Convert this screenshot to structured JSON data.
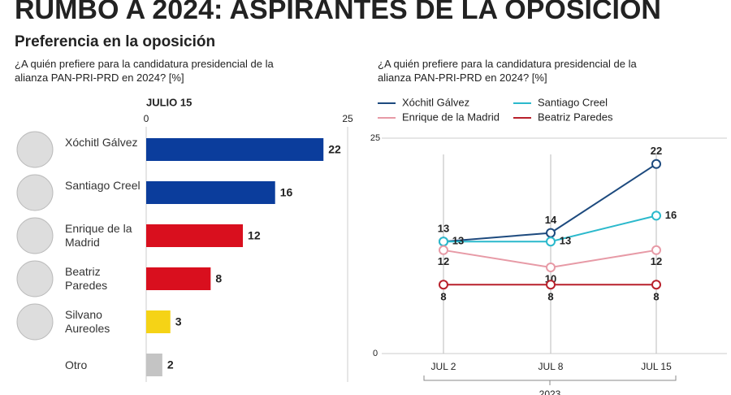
{
  "title": "RUMBO A 2024: ASPIRANTES DE LA OPOSICIÓN",
  "subtitle": "Preferencia en la oposición",
  "chart_data": [
    {
      "type": "hbar",
      "title": "¿A quién prefiere para la candidatura presidencial de la alianza PAN-PRI-PRD en 2024? [%]",
      "subtitle": "JULIO 15",
      "categories": [
        "Xóchitl Gálvez",
        "Santiago Creel",
        "Enrique de la Madrid",
        "Beatriz Paredes",
        "Silvano Aureoles",
        "Otro"
      ],
      "values": [
        22,
        16,
        12,
        8,
        3,
        2
      ],
      "colors": [
        "#0b3d9c",
        "#0b3d9c",
        "#d90f1e",
        "#d90f1e",
        "#f5d316",
        "#c4c4c4"
      ],
      "xlim": [
        0,
        25
      ],
      "xticks": [
        0,
        25
      ]
    },
    {
      "type": "line",
      "title": "¿A quién prefiere para la candidatura presidencial de la alianza PAN-PRI-PRD en 2024? [%]",
      "categories": [
        "JUL 2",
        "JUL 8",
        "JUL 15"
      ],
      "x_group_label": "2023",
      "series": [
        {
          "name": "Xóchitl Gálvez",
          "color": "#1d4a7e",
          "values": [
            13,
            14,
            22
          ]
        },
        {
          "name": "Santiago Creel",
          "color": "#2bb9cc",
          "values": [
            13,
            13,
            16
          ]
        },
        {
          "name": "Enrique de la Madrid",
          "color": "#e79aa6",
          "values": [
            12,
            10,
            12
          ]
        },
        {
          "name": "Beatriz Paredes",
          "color": "#b8202b",
          "values": [
            8,
            8,
            8
          ]
        }
      ],
      "ylim": [
        0,
        25
      ],
      "yticks": [
        0,
        25
      ]
    }
  ]
}
